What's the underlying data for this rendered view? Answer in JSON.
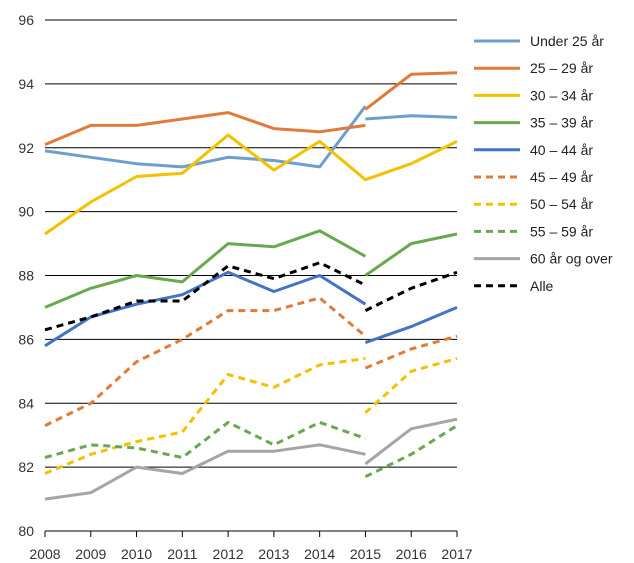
{
  "chart_data": {
    "type": "line",
    "x": [
      2008,
      2009,
      2010,
      2011,
      2012,
      2013,
      2014,
      2015,
      2016,
      2017
    ],
    "ylim": [
      80,
      96
    ],
    "yticks": [
      80,
      82,
      84,
      86,
      88,
      90,
      92,
      94,
      96
    ],
    "grid": "horizontal",
    "legend_position": "right",
    "series": [
      {
        "name": "Under 25 år",
        "color": "#6e9ecf",
        "dash": "solid",
        "segments": [
          {
            "x": [
              2008,
              2009,
              2010,
              2011,
              2012,
              2013,
              2014,
              2015
            ],
            "y": [
              91.9,
              91.7,
              91.5,
              91.4,
              91.7,
              91.6,
              91.4,
              93.3
            ]
          },
          {
            "x": [
              2015,
              2016,
              2017
            ],
            "y": [
              92.9,
              93.0,
              92.95
            ]
          }
        ]
      },
      {
        "name": "25 – 29 år",
        "color": "#e07b39",
        "dash": "solid",
        "segments": [
          {
            "x": [
              2008,
              2009,
              2010,
              2011,
              2012,
              2013,
              2014,
              2015
            ],
            "y": [
              92.1,
              92.7,
              92.7,
              92.9,
              93.1,
              92.6,
              92.5,
              92.7
            ]
          },
          {
            "x": [
              2015,
              2016,
              2017
            ],
            "y": [
              93.2,
              94.3,
              94.35
            ]
          }
        ]
      },
      {
        "name": "30 – 34 år",
        "color": "#f2c100",
        "dash": "solid",
        "segments": [
          {
            "x": [
              2008,
              2009,
              2010,
              2011,
              2012,
              2013,
              2014,
              2015,
              2016,
              2017
            ],
            "y": [
              89.3,
              90.3,
              91.1,
              91.2,
              92.4,
              91.3,
              92.2,
              91.0,
              91.5,
              92.2
            ]
          }
        ]
      },
      {
        "name": "35 – 39 år",
        "color": "#6aa84f",
        "dash": "solid",
        "segments": [
          {
            "x": [
              2008,
              2009,
              2010,
              2011,
              2012,
              2013,
              2014,
              2015
            ],
            "y": [
              87.0,
              87.6,
              88.0,
              87.8,
              89.0,
              88.9,
              89.4,
              88.6
            ]
          },
          {
            "x": [
              2015,
              2016,
              2017
            ],
            "y": [
              88.0,
              89.0,
              89.3
            ]
          }
        ]
      },
      {
        "name": "40 – 44 år",
        "color": "#4472c4",
        "dash": "solid",
        "segments": [
          {
            "x": [
              2008,
              2009,
              2010,
              2011,
              2012,
              2013,
              2014,
              2015
            ],
            "y": [
              85.8,
              86.7,
              87.1,
              87.4,
              88.1,
              87.5,
              88.0,
              87.1
            ]
          },
          {
            "x": [
              2015,
              2016,
              2017
            ],
            "y": [
              85.9,
              86.4,
              87.0
            ]
          }
        ]
      },
      {
        "name": "45 – 49 år",
        "color": "#e07b39",
        "dash": "dashed",
        "segments": [
          {
            "x": [
              2008,
              2009,
              2010,
              2011,
              2012,
              2013,
              2014,
              2015
            ],
            "y": [
              83.3,
              84.0,
              85.3,
              86.0,
              86.9,
              86.9,
              87.3,
              86.1
            ]
          },
          {
            "x": [
              2015,
              2016,
              2017
            ],
            "y": [
              85.1,
              85.7,
              86.1
            ]
          }
        ]
      },
      {
        "name": "50 – 54 år",
        "color": "#f2c100",
        "dash": "dashed",
        "segments": [
          {
            "x": [
              2008,
              2009,
              2010,
              2011,
              2012,
              2013,
              2014,
              2015
            ],
            "y": [
              81.8,
              82.4,
              82.8,
              83.1,
              84.9,
              84.5,
              85.2,
              85.4
            ]
          },
          {
            "x": [
              2015,
              2016,
              2017
            ],
            "y": [
              83.7,
              85.0,
              85.4
            ]
          }
        ]
      },
      {
        "name": "55 – 59 år",
        "color": "#6aa84f",
        "dash": "dashed",
        "segments": [
          {
            "x": [
              2008,
              2009,
              2010,
              2011,
              2012,
              2013,
              2014,
              2015
            ],
            "y": [
              82.3,
              82.7,
              82.6,
              82.3,
              83.4,
              82.7,
              83.4,
              82.9
            ]
          },
          {
            "x": [
              2015,
              2016,
              2017
            ],
            "y": [
              81.7,
              82.4,
              83.3
            ]
          }
        ]
      },
      {
        "name": "60 år og over",
        "color": "#a5a5a5",
        "dash": "solid",
        "segments": [
          {
            "x": [
              2008,
              2009,
              2010,
              2011,
              2012,
              2013,
              2014,
              2015
            ],
            "y": [
              81.0,
              81.2,
              82.0,
              81.8,
              82.5,
              82.5,
              82.7,
              82.4
            ]
          },
          {
            "x": [
              2015,
              2016,
              2017
            ],
            "y": [
              82.1,
              83.2,
              83.5
            ]
          }
        ]
      },
      {
        "name": "Alle",
        "color": "#000000",
        "dash": "dashed",
        "segments": [
          {
            "x": [
              2008,
              2009,
              2010,
              2011,
              2012,
              2013,
              2014,
              2015
            ],
            "y": [
              86.3,
              86.7,
              87.2,
              87.2,
              88.3,
              87.9,
              88.4,
              87.7
            ]
          },
          {
            "x": [
              2015,
              2016,
              2017
            ],
            "y": [
              86.9,
              87.6,
              88.1
            ]
          }
        ]
      }
    ]
  }
}
